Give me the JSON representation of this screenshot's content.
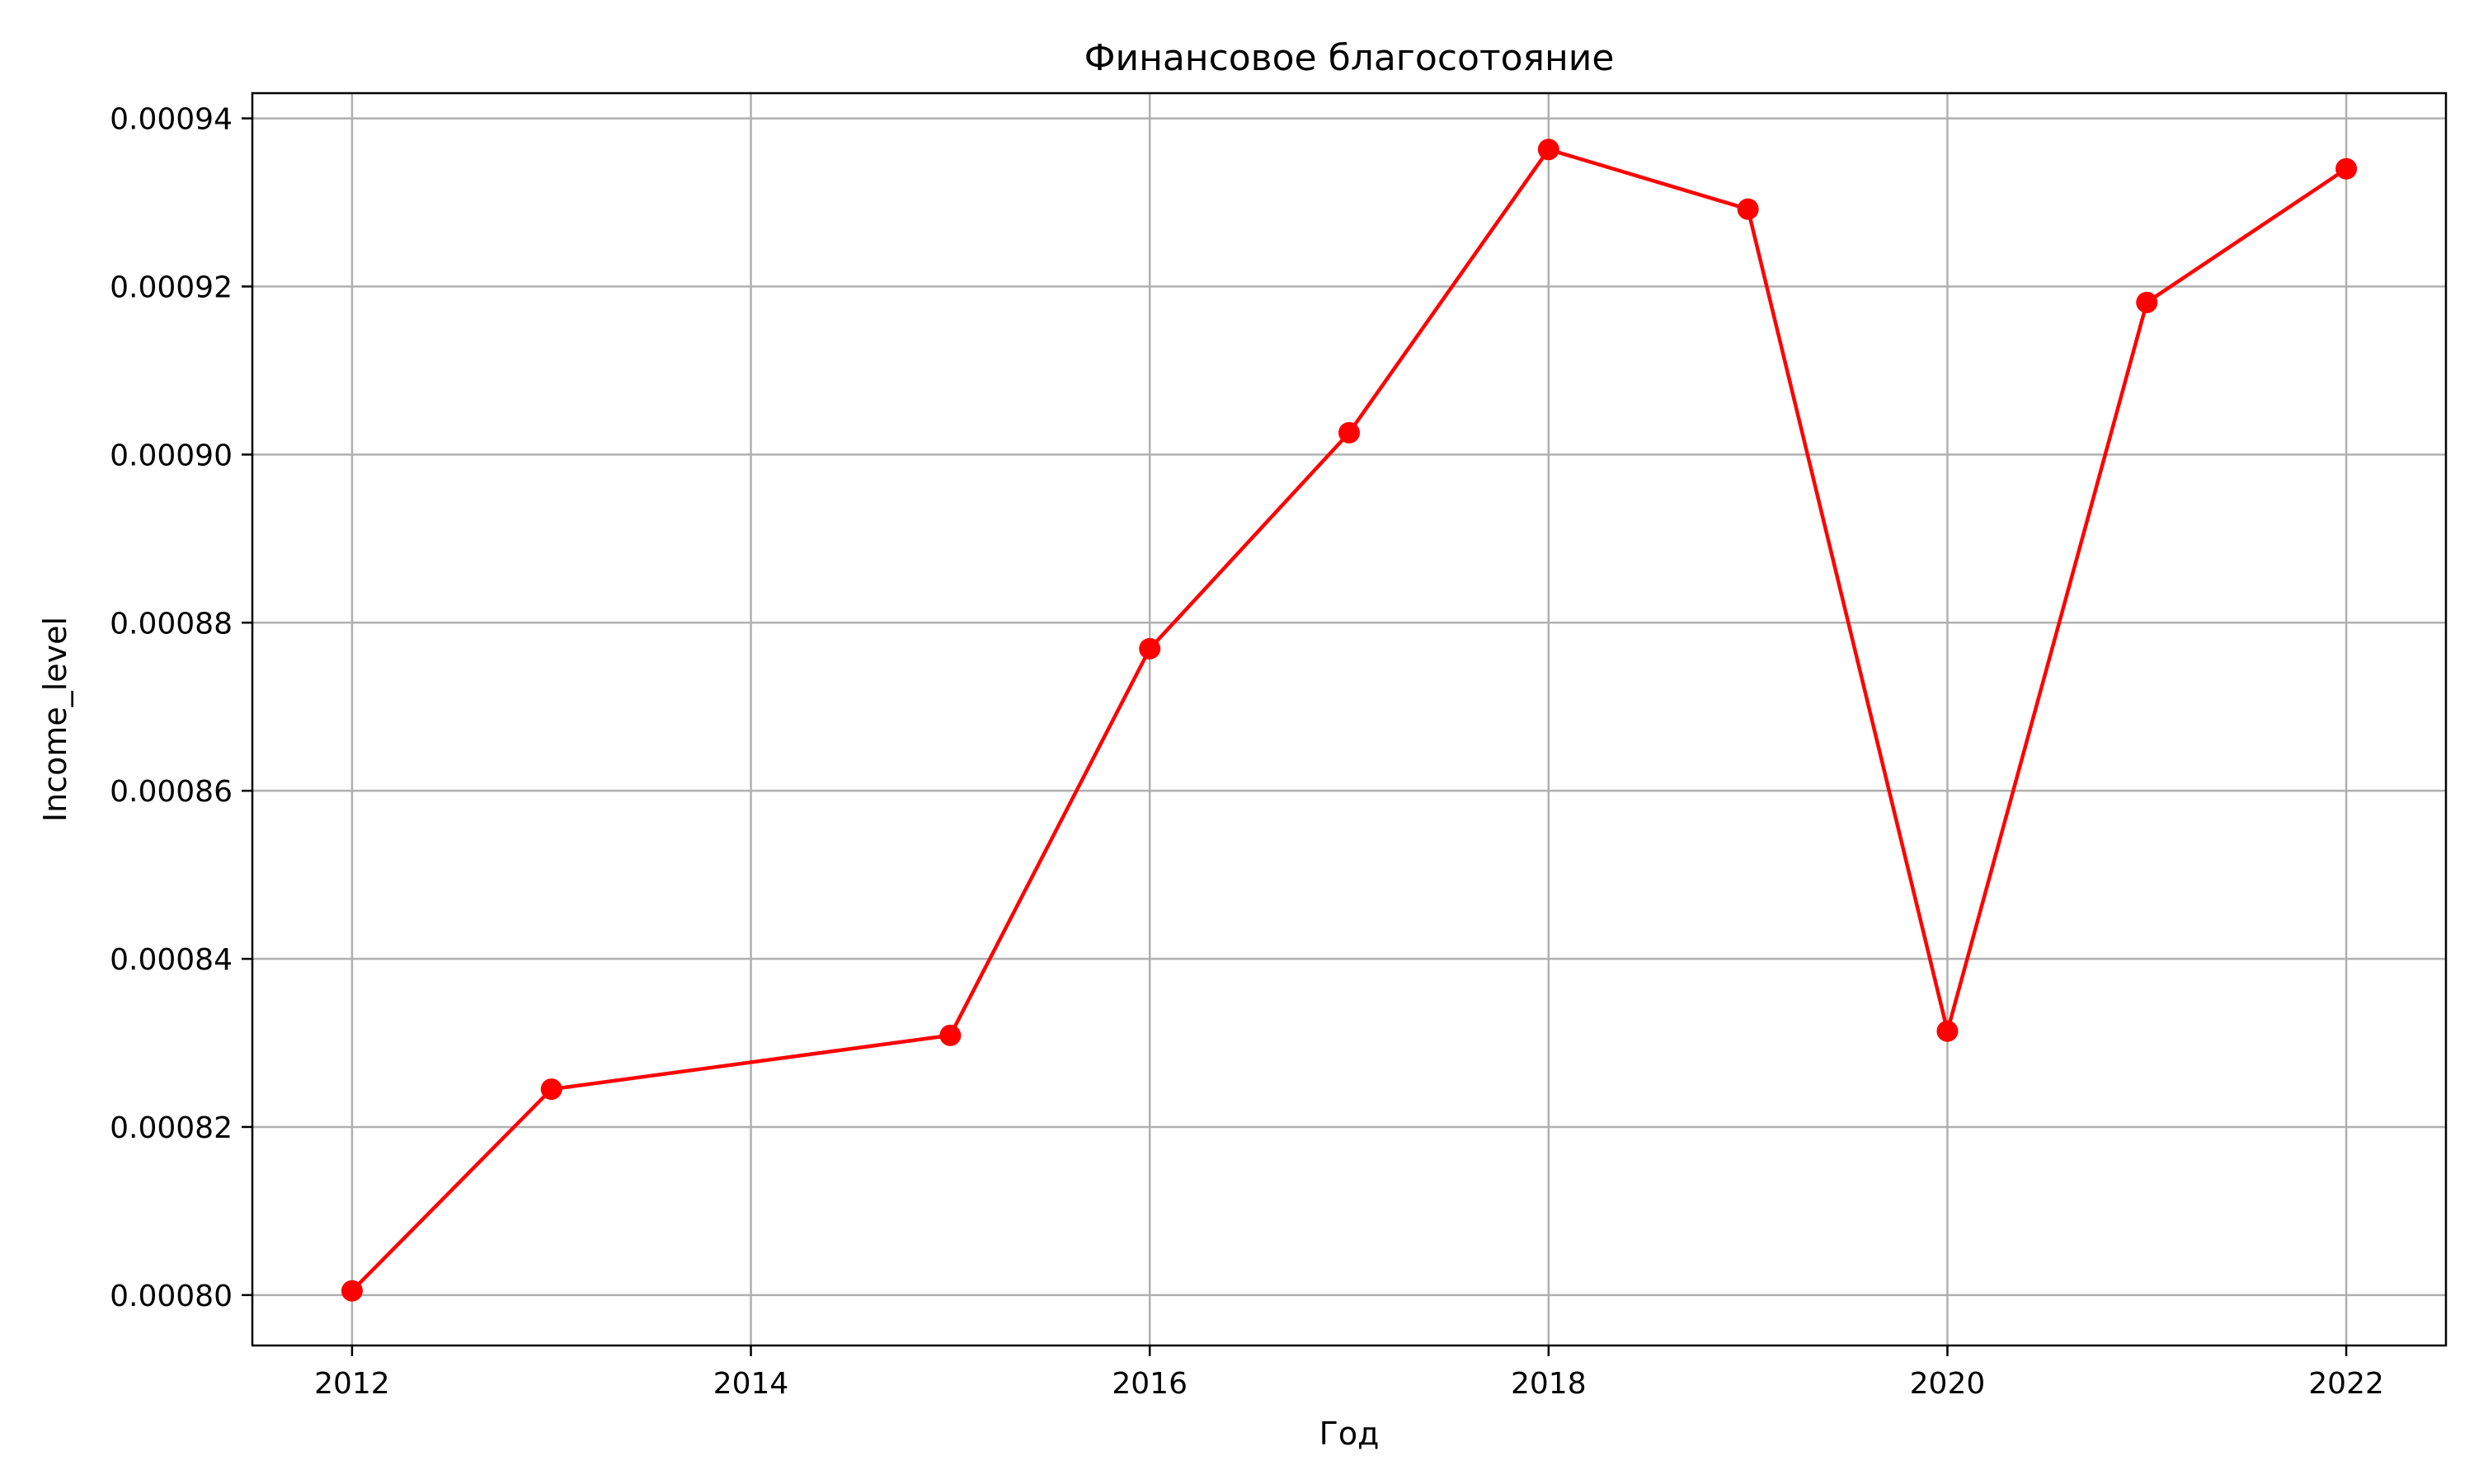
{
  "chart_data": {
    "type": "line",
    "title": "Финансовое благосотояние",
    "xlabel": "Год",
    "ylabel": "Income_level",
    "x": [
      2012,
      2013,
      2015,
      2016,
      2017,
      2018,
      2019,
      2020,
      2021,
      2022
    ],
    "series": [
      {
        "values": [
          0.0008005,
          0.0008245,
          0.0008309,
          0.0008769,
          0.0009026,
          0.0009363,
          0.0009292,
          0.0008314,
          0.0009181,
          0.000934
        ],
        "color": "#ff0000",
        "marker": "circle"
      }
    ],
    "xlim": [
      2011.5,
      2022.5
    ],
    "ylim": [
      0.000794,
      0.000943
    ],
    "xticks": [
      2012,
      2014,
      2016,
      2018,
      2020,
      2022
    ],
    "xtick_labels": [
      "2012",
      "2014",
      "2016",
      "2018",
      "2020",
      "2022"
    ],
    "yticks": [
      0.0008,
      0.00082,
      0.00084,
      0.00086,
      0.00088,
      0.0009,
      0.00092,
      0.00094
    ],
    "ytick_labels": [
      "0.00080",
      "0.00082",
      "0.00084",
      "0.00086",
      "0.00088",
      "0.00090",
      "0.00092",
      "0.00094"
    ],
    "grid": true,
    "grid_color": "#b0b0b0"
  }
}
